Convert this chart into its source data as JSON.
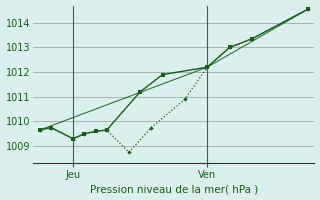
{
  "bg_color": "#daf0ec",
  "grid_color": "#999999",
  "line_color": "#1a5c1a",
  "title": "Pression niveau de la mer( hPa )",
  "ylim": [
    1008.3,
    1014.7
  ],
  "yticks": [
    1009,
    1010,
    1011,
    1012,
    1013,
    1014
  ],
  "xlim": [
    -0.3,
    12.3
  ],
  "xtick_positions": [
    1.5,
    7.5
  ],
  "xtick_labels": [
    "Jeu",
    "Ven"
  ],
  "vline_positions": [
    1.5,
    7.5
  ],
  "line1_x": [
    0,
    0.5,
    1.5,
    2.0,
    2.5,
    3.0,
    4.5,
    5.5,
    7.5,
    8.5,
    9.5,
    12.0
  ],
  "line1_y": [
    1009.65,
    1009.75,
    1009.3,
    1009.5,
    1009.6,
    1009.65,
    1011.2,
    1011.9,
    1012.2,
    1013.0,
    1013.35,
    1014.55
  ],
  "line2_x": [
    0,
    0.5,
    1.5,
    2.0,
    3.0,
    4.0,
    5.0,
    6.5,
    7.5,
    8.5,
    9.5,
    12.0
  ],
  "line2_y": [
    1009.65,
    1009.75,
    1009.3,
    1009.5,
    1009.65,
    1008.75,
    1009.75,
    1010.9,
    1012.2,
    1013.0,
    1013.35,
    1014.55
  ],
  "line3_x": [
    0,
    7.5,
    12.0
  ],
  "line3_y": [
    1009.65,
    1012.2,
    1014.55
  ]
}
